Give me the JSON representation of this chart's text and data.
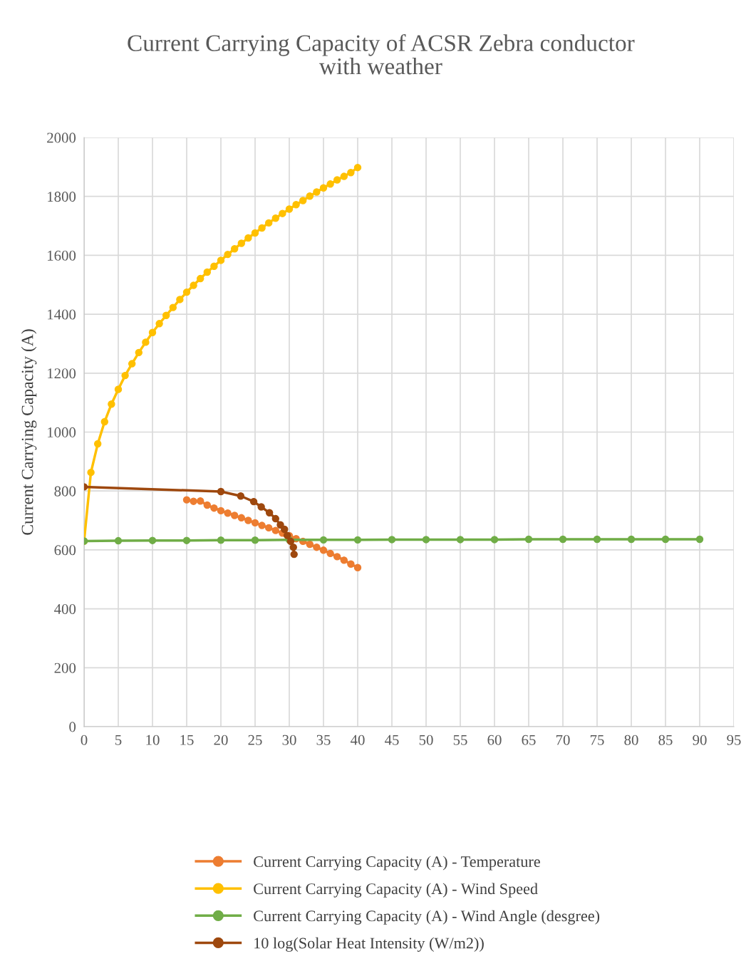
{
  "chart_data": {
    "type": "line",
    "title": "Current Carrying Capacity of ACSR Zebra conductor\nwith weather",
    "ylabel": "Current Carrying Capacity (A)",
    "xlim": [
      0,
      95
    ],
    "xticks": [
      0,
      5,
      10,
      15,
      20,
      25,
      30,
      35,
      40,
      45,
      50,
      55,
      60,
      65,
      70,
      75,
      80,
      85,
      90,
      95
    ],
    "ylim": [
      0,
      2000
    ],
    "yticks": [
      0,
      200,
      400,
      600,
      800,
      1000,
      1200,
      1400,
      1600,
      1800,
      2000
    ],
    "grid": true,
    "legend": "bottom",
    "marker": "circle",
    "line_style": "solid",
    "series": [
      {
        "name": "Current Carrying Capacity (A) - Temperature",
        "color": "#ed7d31",
        "x": [
          15,
          16,
          17,
          18,
          19,
          20,
          21,
          22,
          23,
          24,
          25,
          26,
          27,
          28,
          29,
          30,
          31,
          32,
          33,
          34,
          35,
          36,
          37,
          38,
          39,
          40
        ],
        "values": [
          770,
          765,
          766,
          752,
          742,
          733,
          725,
          717,
          709,
          700,
          692,
          683,
          675,
          666,
          657,
          648,
          638,
          629,
          619,
          609,
          599,
          588,
          577,
          565,
          552,
          540
        ]
      },
      {
        "name": "Current Carrying Capacity (A) - Wind Speed",
        "color": "#ffc000",
        "x": [
          0,
          1,
          2,
          3,
          4,
          5,
          6,
          7,
          8,
          9,
          10,
          11,
          12,
          13,
          14,
          15,
          16,
          17,
          18,
          19,
          20,
          21,
          22,
          23,
          24,
          25,
          26,
          27,
          28,
          29,
          30,
          31,
          32,
          33,
          34,
          35,
          36,
          37,
          38,
          39,
          40
        ],
        "values": [
          630,
          863,
          960,
          1035,
          1095,
          1145,
          1192,
          1232,
          1270,
          1305,
          1338,
          1368,
          1396,
          1423,
          1450,
          1475,
          1498,
          1521,
          1543,
          1563,
          1583,
          1603,
          1622,
          1641,
          1659,
          1676,
          1693,
          1710,
          1726,
          1742,
          1757,
          1772,
          1786,
          1801,
          1815,
          1829,
          1842,
          1856,
          1868,
          1881,
          1898
        ]
      },
      {
        "name": "Current Carrying Capacity (A) - Wind Angle (desgree)",
        "color": "#70ad47",
        "x": [
          0,
          5,
          10,
          15,
          20,
          25,
          30,
          35,
          40,
          45,
          50,
          55,
          60,
          65,
          70,
          75,
          80,
          85,
          90
        ],
        "values": [
          630,
          631,
          632,
          632,
          633,
          633,
          634,
          634,
          634,
          635,
          635,
          635,
          635,
          636,
          636,
          636,
          636,
          636,
          636
        ]
      },
      {
        "name": "10 log(Solar Heat Intensity (W/m2))",
        "color": "#9e480e",
        "x": [
          0,
          20,
          22.9,
          24.8,
          25.9,
          27.1,
          28,
          28.7,
          29.3,
          29.7,
          30.2,
          30.6,
          30.7
        ],
        "values": [
          814,
          798,
          783,
          764,
          746,
          726,
          706,
          685,
          670,
          649,
          629,
          609,
          585
        ]
      }
    ]
  }
}
